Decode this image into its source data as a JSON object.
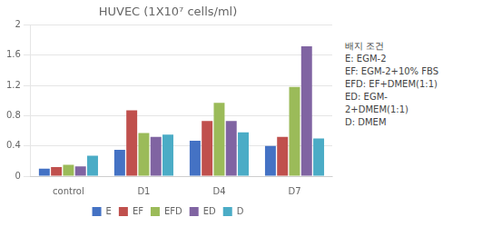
{
  "chart_data": {
    "type": "bar",
    "title": "HUVEC (1X10⁷ cells/ml)",
    "categories": [
      "control",
      "D1",
      "D4",
      "D7"
    ],
    "series": [
      {
        "name": "E",
        "color": "#4472C4",
        "values": [
          0.1,
          0.35,
          0.47,
          0.4
        ]
      },
      {
        "name": "EF",
        "color": "#C0504D",
        "values": [
          0.12,
          0.87,
          0.73,
          0.52
        ]
      },
      {
        "name": "EFD",
        "color": "#9BBB59",
        "values": [
          0.15,
          0.57,
          0.97,
          1.18
        ]
      },
      {
        "name": "ED",
        "color": "#8064A2",
        "values": [
          0.13,
          0.52,
          0.73,
          1.72
        ]
      },
      {
        "name": "D",
        "color": "#4BACC6",
        "values": [
          0.27,
          0.55,
          0.58,
          0.5
        ]
      }
    ],
    "ylim": [
      0,
      2
    ],
    "yticks": [
      0,
      0.4,
      0.8,
      1.2,
      1.6,
      2
    ],
    "grid": true,
    "legend": "bottom",
    "annotation": "배지 조건\nE: EGM-2\nEF: EGM-2+10% FBS\nEFD: EF+DMEM(1:1)\nED: EGM-\n2+DMEM(1:1)\nD: DMEM"
  }
}
